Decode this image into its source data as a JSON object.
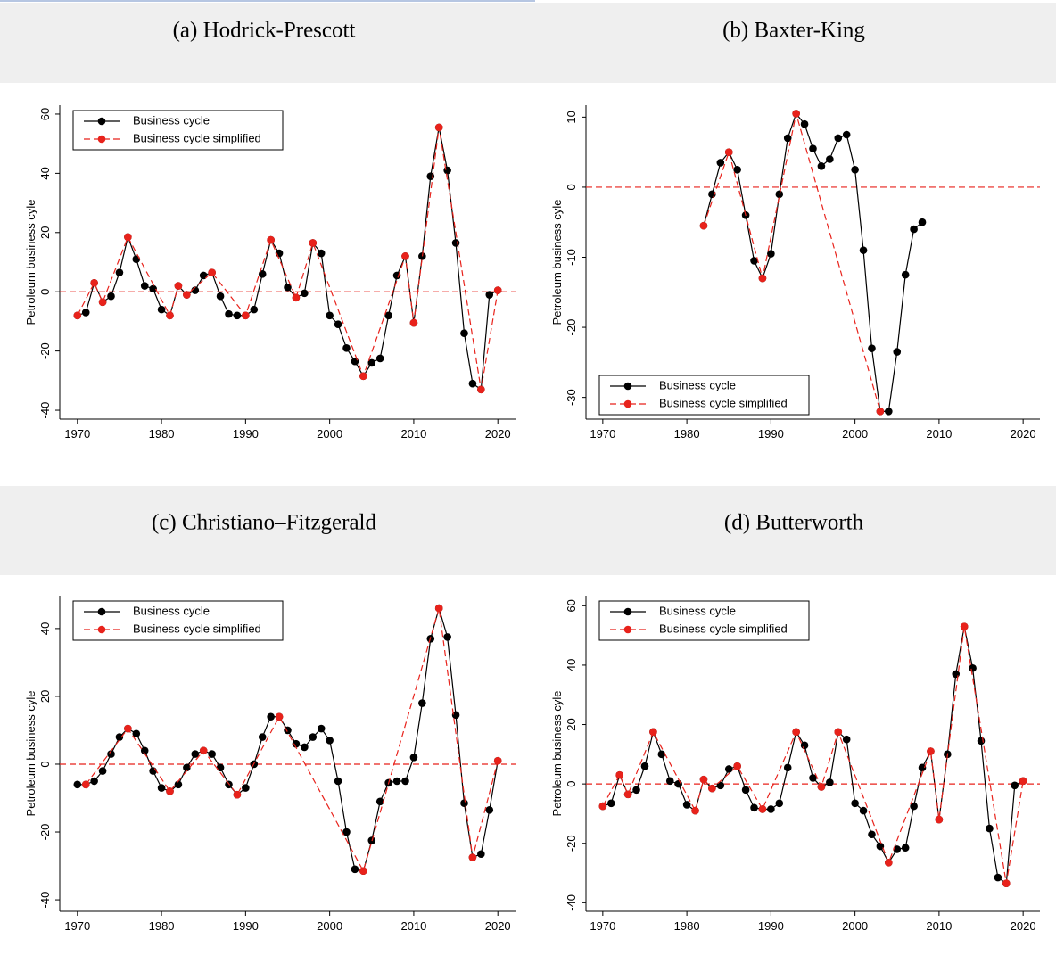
{
  "chart_data": [
    {
      "type": "line",
      "title": "(a) Hodrick-Prescott",
      "ylabel": "Petroleum business cyle",
      "xlim": [
        1967.9,
        2022.1
      ],
      "xticks": [
        1970,
        1980,
        1990,
        2000,
        2010,
        2020
      ],
      "ylim": [
        -43,
        63
      ],
      "yticks": [
        -40,
        -20,
        0,
        20,
        40,
        60
      ],
      "reference_line": 0,
      "reference_color": "#e8221b",
      "legend": "top-left",
      "series": [
        {
          "name": "Business cycle",
          "color": "#000000",
          "dashed": false,
          "x": [
            1970,
            1971,
            1972,
            1973,
            1974,
            1975,
            1976,
            1977,
            1978,
            1979,
            1980,
            1981,
            1982,
            1983,
            1984,
            1985,
            1986,
            1987,
            1988,
            1989,
            1990,
            1991,
            1992,
            1993,
            1994,
            1995,
            1996,
            1997,
            1998,
            1999,
            2000,
            2001,
            2002,
            2003,
            2004,
            2005,
            2006,
            2007,
            2008,
            2009,
            2010,
            2011,
            2012,
            2013,
            2014,
            2015,
            2016,
            2017,
            2018,
            2019,
            2020
          ],
          "values": [
            -8,
            -7,
            3,
            -3.5,
            -1.5,
            6.5,
            18.5,
            11,
            2,
            1,
            -6,
            -8,
            2,
            -1,
            0.5,
            5.5,
            6.5,
            -1.5,
            -7.5,
            -8,
            -8,
            -6,
            6,
            17.5,
            13,
            1.5,
            -2,
            -0.5,
            16.5,
            13,
            -8,
            -11,
            -19,
            -23.5,
            -28.5,
            -24,
            -22.5,
            -8,
            5.5,
            12,
            -10.5,
            12,
            39,
            55.5,
            41,
            16.5,
            -14,
            -31,
            -33,
            -1,
            0.5
          ]
        },
        {
          "name": "Business cycle simplified",
          "color": "#e8221b",
          "dashed": true,
          "x": [
            1970,
            1972,
            1973,
            1976,
            1981,
            1982,
            1983,
            1986,
            1990,
            1993,
            1996,
            1998,
            2004,
            2009,
            2010,
            2013,
            2018,
            2020
          ],
          "values": [
            -8,
            3,
            -3.5,
            18.5,
            -8,
            2,
            -1,
            6.5,
            -8,
            17.5,
            -2,
            16.5,
            -28.5,
            12,
            -10.5,
            55.5,
            -33,
            0.5
          ]
        }
      ]
    },
    {
      "type": "line",
      "title": "(b) Baxter-King",
      "ylabel": "Petroleum business cyle",
      "xlim": [
        1968,
        2022
      ],
      "xticks": [
        1970,
        1980,
        1990,
        2000,
        2010,
        2020
      ],
      "ylim": [
        -33.1,
        11.7
      ],
      "yticks": [
        -30,
        -20,
        -10,
        0,
        10
      ],
      "reference_line": 0,
      "reference_color": "#e8221b",
      "legend": "bottom-left",
      "series": [
        {
          "name": "Business cycle",
          "color": "#000000",
          "dashed": false,
          "x": [
            1982,
            1983,
            1984,
            1985,
            1986,
            1987,
            1988,
            1989,
            1990,
            1991,
            1992,
            1993,
            1994,
            1995,
            1996,
            1997,
            1998,
            1999,
            2000,
            2001,
            2002,
            2003,
            2004,
            2005,
            2006,
            2007,
            2008
          ],
          "values": [
            -5.5,
            -1,
            3.5,
            5,
            2.5,
            -4,
            -10.5,
            -13,
            -9.5,
            -1,
            7,
            10.5,
            9,
            5.5,
            3,
            4,
            7,
            7.5,
            2.5,
            -9,
            -23,
            -32,
            -32,
            -23.5,
            -12.5,
            -6,
            -5
          ]
        },
        {
          "name": "Business cycle simplified",
          "color": "#e8221b",
          "dashed": true,
          "x": [
            1982,
            1985,
            1989,
            1993,
            2003
          ],
          "values": [
            -5.5,
            5,
            -13,
            10.5,
            -32
          ]
        }
      ]
    },
    {
      "type": "line",
      "title": "(c) Christiano–Fitzgerald",
      "ylabel": "Petroleum business cyle",
      "xlim": [
        1967.9,
        2022.1
      ],
      "xticks": [
        1970,
        1980,
        1990,
        2000,
        2010,
        2020
      ],
      "ylim": [
        -43.4,
        49.7
      ],
      "yticks": [
        -40,
        -20,
        0,
        20,
        40
      ],
      "reference_line": 0,
      "reference_color": "#e8221b",
      "legend": "top-left",
      "series": [
        {
          "name": "Business cycle",
          "color": "#000000",
          "dashed": false,
          "x": [
            1970,
            1971,
            1972,
            1973,
            1974,
            1975,
            1976,
            1977,
            1978,
            1979,
            1980,
            1981,
            1982,
            1983,
            1984,
            1985,
            1986,
            1987,
            1988,
            1989,
            1990,
            1991,
            1992,
            1993,
            1994,
            1995,
            1996,
            1997,
            1998,
            1999,
            2000,
            2001,
            2002,
            2003,
            2004,
            2005,
            2006,
            2007,
            2008,
            2009,
            2010,
            2011,
            2012,
            2013,
            2014,
            2015,
            2016,
            2017,
            2018,
            2019,
            2020
          ],
          "values": [
            -6,
            -6,
            -5,
            -2,
            3,
            8,
            10.5,
            9,
            4,
            -2,
            -7,
            -8,
            -6,
            -1,
            3,
            4,
            3,
            -1,
            -6,
            -9,
            -7,
            0,
            8,
            14,
            14,
            10,
            6,
            5,
            8,
            10.5,
            7,
            -5,
            -20,
            -31,
            -31.5,
            -22.5,
            -11,
            -5.5,
            -5,
            -5,
            2,
            18,
            37,
            46,
            37.5,
            14.5,
            -11.5,
            -27.5,
            -26.5,
            -13.5,
            1
          ]
        },
        {
          "name": "Business cycle simplified",
          "color": "#e8221b",
          "dashed": true,
          "x": [
            1971,
            1976,
            1981,
            1985,
            1989,
            1994,
            2004,
            2013,
            2017,
            2020
          ],
          "values": [
            -6,
            10.5,
            -8,
            4,
            -9,
            14,
            -31.5,
            46,
            -27.5,
            1
          ]
        }
      ]
    },
    {
      "type": "line",
      "title": "(d) Butterworth",
      "ylabel": "Petroleum business cyle",
      "xlim": [
        1968,
        2022
      ],
      "xticks": [
        1970,
        1980,
        1990,
        2000,
        2010,
        2020
      ],
      "ylim": [
        -42.9,
        63.4
      ],
      "yticks": [
        -40,
        -20,
        0,
        20,
        40,
        60
      ],
      "reference_line": 0,
      "reference_color": "#e8221b",
      "legend": "top-left",
      "series": [
        {
          "name": "Business cycle",
          "color": "#000000",
          "dashed": false,
          "x": [
            1970,
            1971,
            1972,
            1973,
            1974,
            1975,
            1976,
            1977,
            1978,
            1979,
            1980,
            1981,
            1982,
            1983,
            1984,
            1985,
            1986,
            1987,
            1988,
            1989,
            1990,
            1991,
            1992,
            1993,
            1994,
            1995,
            1996,
            1997,
            1998,
            1999,
            2000,
            2001,
            2002,
            2003,
            2004,
            2005,
            2006,
            2007,
            2008,
            2009,
            2010,
            2011,
            2012,
            2013,
            2014,
            2015,
            2016,
            2017,
            2018,
            2019,
            2020
          ],
          "values": [
            -7.5,
            -6.5,
            3,
            -3.5,
            -2,
            6,
            17.5,
            10,
            1,
            0,
            -7,
            -9,
            1.5,
            -1.5,
            -0.5,
            5,
            6,
            -2,
            -8,
            -8.5,
            -8.5,
            -6.5,
            5.5,
            17.5,
            13,
            2,
            -1,
            0.5,
            17.5,
            15,
            -6.5,
            -9,
            -17,
            -21,
            -26.5,
            -22,
            -21.5,
            -7.5,
            5.5,
            11,
            -12,
            10,
            37,
            53,
            39,
            14.5,
            -15,
            -31.5,
            -33.5,
            -0.5,
            1
          ]
        },
        {
          "name": "Business cycle simplified",
          "color": "#e8221b",
          "dashed": true,
          "x": [
            1970,
            1972,
            1973,
            1976,
            1981,
            1982,
            1983,
            1986,
            1989,
            1993,
            1996,
            1998,
            2004,
            2009,
            2010,
            2013,
            2018,
            2020
          ],
          "values": [
            -7.5,
            3,
            -3.5,
            17.5,
            -9,
            1.5,
            -1.5,
            6,
            -8.5,
            17.5,
            -1,
            17.5,
            -26.5,
            11,
            -12,
            53,
            -33.5,
            1
          ]
        }
      ]
    }
  ]
}
